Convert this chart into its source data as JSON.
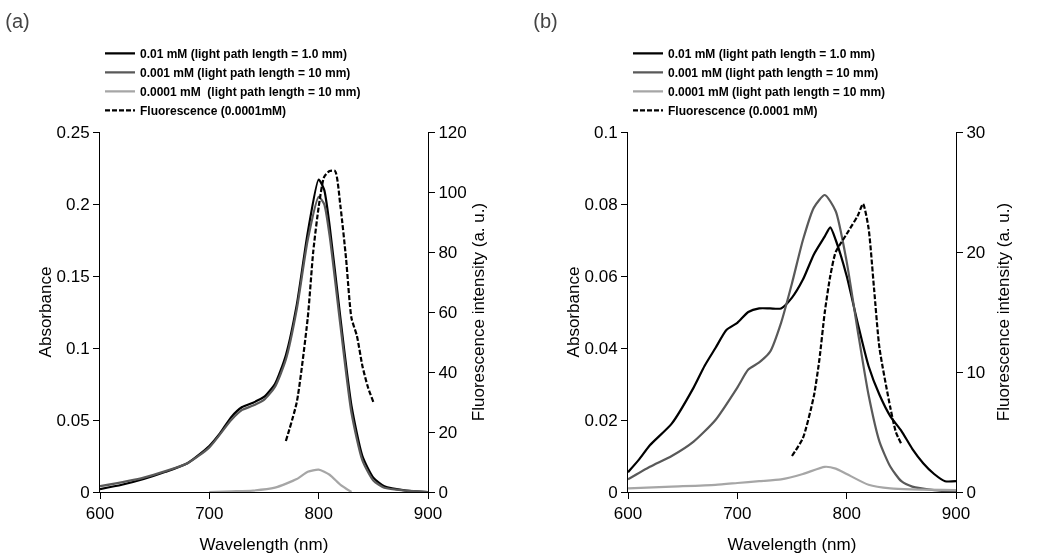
{
  "chart_data": [
    {
      "type": "line",
      "title": "(a)",
      "xlabel": "Wavelength (nm)",
      "ylabel": "Absorbance",
      "y2label": "Fluorescence intensity (a. u.)",
      "xlim": [
        600,
        900
      ],
      "xticks": [
        600,
        700,
        800,
        900
      ],
      "ylim": [
        0,
        0.25
      ],
      "yticks": [
        0,
        0.05,
        0.1,
        0.15,
        0.2,
        0.25
      ],
      "y2lim": [
        0,
        120
      ],
      "y2ticks": [
        0,
        20,
        40,
        60,
        80,
        100,
        120
      ],
      "grid": false,
      "legend": "top",
      "marker": "none",
      "series": [
        {
          "name": "0.01 mM (light path length = 1.0 mm)",
          "color": "#000000",
          "line_style": "solid",
          "x": [
            600,
            620,
            640,
            660,
            680,
            700,
            710,
            720,
            730,
            740,
            750,
            760,
            770,
            780,
            790,
            800,
            805,
            810,
            820,
            830,
            840,
            850,
            860,
            880,
            900
          ],
          "values": [
            0.002,
            0.005,
            0.009,
            0.014,
            0.02,
            0.032,
            0.041,
            0.052,
            0.059,
            0.062,
            0.066,
            0.075,
            0.095,
            0.13,
            0.18,
            0.217,
            0.21,
            0.185,
            0.12,
            0.06,
            0.025,
            0.01,
            0.004,
            0.001,
            0
          ]
        },
        {
          "name": "0.001 mM (light path length = 10 mm)",
          "color": "#595959",
          "line_style": "solid",
          "x": [
            600,
            640,
            680,
            700,
            720,
            730,
            740,
            750,
            760,
            770,
            780,
            790,
            800,
            805,
            810,
            820,
            830,
            840,
            850,
            860,
            880,
            900
          ],
          "values": [
            0.004,
            0.01,
            0.02,
            0.031,
            0.05,
            0.057,
            0.06,
            0.064,
            0.073,
            0.092,
            0.127,
            0.175,
            0.205,
            0.2,
            0.178,
            0.115,
            0.055,
            0.022,
            0.008,
            0.003,
            0.001,
            0
          ]
        },
        {
          "name": "0.0001 mM  (light path length = 10 mm)",
          "color": "#a6a6a6",
          "line_style": "solid",
          "x": [
            700,
            720,
            740,
            760,
            780,
            790,
            800,
            810,
            820,
            830
          ],
          "values": [
            0,
            0.0005,
            0.001,
            0.003,
            0.009,
            0.014,
            0.0155,
            0.012,
            0.005,
            0
          ]
        },
        {
          "name": "Fluorescence (0.0001mM)",
          "color": "#000000",
          "line_style": "dashed",
          "axis": "y2",
          "x": [
            770,
            780,
            790,
            795,
            800,
            805,
            810,
            815,
            820,
            825,
            830,
            835,
            840,
            845,
            850
          ],
          "values": [
            17,
            30,
            58,
            80,
            95,
            105,
            107,
            107,
            95,
            78,
            58,
            52,
            42,
            35,
            30
          ]
        }
      ]
    },
    {
      "type": "line",
      "title": "(b)",
      "xlabel": "Wavelength (nm)",
      "ylabel": "Absorbance",
      "y2label": "Fluorescence intensity (a. u.)",
      "xlim": [
        600,
        900
      ],
      "xticks": [
        600,
        700,
        800,
        900
      ],
      "ylim": [
        0,
        0.1
      ],
      "yticks": [
        0,
        0.02,
        0.04,
        0.06,
        0.08,
        0.1
      ],
      "y2lim": [
        0,
        30
      ],
      "y2ticks": [
        0,
        10,
        20,
        30
      ],
      "grid": false,
      "legend": "top",
      "marker": "none",
      "series": [
        {
          "name": "0.01 mM (light path length = 1.0 mm)",
          "color": "#000000",
          "line_style": "solid",
          "x": [
            600,
            610,
            620,
            640,
            660,
            670,
            680,
            690,
            700,
            710,
            720,
            730,
            740,
            750,
            760,
            770,
            780,
            785,
            790,
            800,
            810,
            820,
            830,
            840,
            850,
            860,
            870,
            880,
            890,
            900
          ],
          "values": [
            0.0055,
            0.009,
            0.013,
            0.019,
            0.029,
            0.035,
            0.04,
            0.045,
            0.047,
            0.05,
            0.051,
            0.051,
            0.051,
            0.054,
            0.059,
            0.066,
            0.071,
            0.0735,
            0.07,
            0.06,
            0.047,
            0.035,
            0.027,
            0.021,
            0.017,
            0.012,
            0.008,
            0.005,
            0.003,
            0.003
          ]
        },
        {
          "name": "0.001 mM (light path length = 10 mm)",
          "color": "#595959",
          "line_style": "solid",
          "x": [
            600,
            620,
            640,
            660,
            680,
            700,
            710,
            720,
            730,
            740,
            750,
            760,
            770,
            780,
            790,
            800,
            810,
            820,
            830,
            840,
            850,
            860,
            880,
            900
          ],
          "values": [
            0.0035,
            0.007,
            0.01,
            0.014,
            0.02,
            0.029,
            0.034,
            0.036,
            0.039,
            0.047,
            0.058,
            0.07,
            0.079,
            0.0825,
            0.078,
            0.064,
            0.045,
            0.027,
            0.014,
            0.007,
            0.003,
            0.0015,
            0.0005,
            0
          ]
        },
        {
          "name": "0.0001 mM (light path length = 10 mm)",
          "color": "#a6a6a6",
          "line_style": "solid",
          "x": [
            600,
            640,
            680,
            700,
            720,
            740,
            760,
            780,
            790,
            800,
            820,
            840,
            900
          ],
          "values": [
            0.001,
            0.0015,
            0.002,
            0.0025,
            0.003,
            0.0035,
            0.005,
            0.007,
            0.0065,
            0.005,
            0.002,
            0.001,
            0.0005
          ]
        },
        {
          "name": "Fluorescence (0.0001 mM)",
          "color": "#000000",
          "line_style": "dashed",
          "axis": "y2",
          "x": [
            750,
            760,
            770,
            775,
            780,
            785,
            790,
            800,
            810,
            815,
            820,
            825,
            830,
            840,
            845,
            850
          ],
          "values": [
            3,
            4.5,
            8,
            11,
            15,
            18,
            20,
            21.5,
            23,
            24,
            22,
            17,
            12,
            7,
            5,
            4
          ]
        }
      ]
    }
  ]
}
